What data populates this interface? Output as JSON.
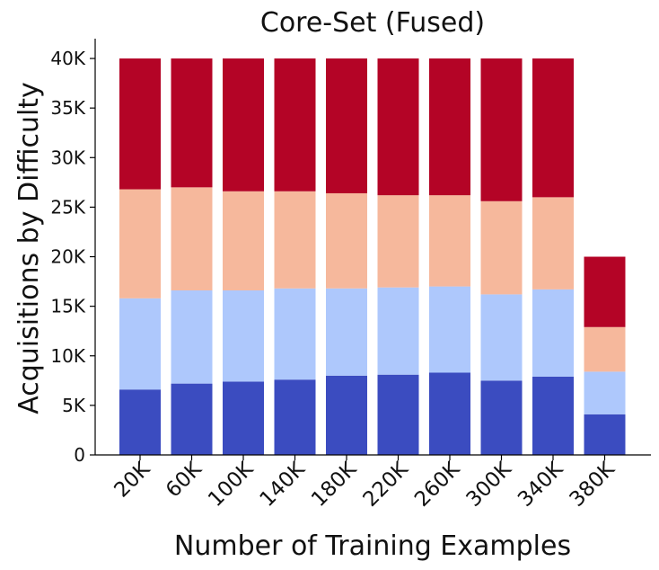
{
  "chart_data": {
    "type": "bar",
    "stacked": true,
    "title": "Core-Set (Fused)",
    "xlabel": "Number of Training Examples",
    "ylabel": "Acquisitions by Difficulty",
    "categories": [
      "20K",
      "60K",
      "100K",
      "140K",
      "180K",
      "220K",
      "260K",
      "300K",
      "340K",
      "380K"
    ],
    "ylim": [
      0,
      42000
    ],
    "yticks": [
      0,
      5000,
      10000,
      15000,
      20000,
      25000,
      30000,
      35000,
      40000
    ],
    "ytick_labels": [
      "0",
      "5K",
      "10K",
      "15K",
      "20K",
      "25K",
      "30K",
      "35K",
      "40K"
    ],
    "grid": false,
    "series": [
      {
        "color": "#3b4cc0",
        "values": [
          6600,
          7200,
          7400,
          7600,
          8000,
          8100,
          8300,
          7500,
          7900,
          4100
        ]
      },
      {
        "color": "#aec8fc",
        "values": [
          9200,
          9400,
          9200,
          9200,
          8800,
          8800,
          8700,
          8700,
          8800,
          4300
        ]
      },
      {
        "color": "#f6b89c",
        "values": [
          11000,
          10400,
          10000,
          9800,
          9600,
          9300,
          9200,
          9400,
          9300,
          4500
        ]
      },
      {
        "color": "#b40426",
        "values": [
          13200,
          13000,
          13400,
          13400,
          13600,
          13800,
          13800,
          14400,
          14000,
          7100
        ]
      }
    ]
  }
}
